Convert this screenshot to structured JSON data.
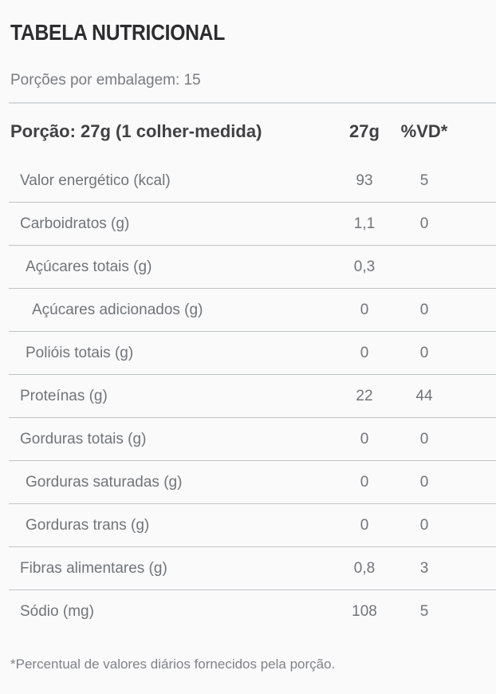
{
  "page": {
    "title": "TABELA NUTRICIONAL",
    "servings_label": "Porções por embalagem: 15",
    "footnote": "*Percentual de valores diários fornecidos pela porção."
  },
  "table": {
    "header": {
      "portion_label": "Porção: 27g (1 colher-medida)",
      "quantity_col": "27g",
      "dv_col": "%VD*"
    },
    "rows": [
      {
        "label": "Valor energético (kcal)",
        "qty": "93",
        "vd": "5",
        "indent": 0
      },
      {
        "label": "Carboidratos (g)",
        "qty": "1,1",
        "vd": "0",
        "indent": 0
      },
      {
        "label": "Açúcares totais (g)",
        "qty": "0,3",
        "vd": "",
        "indent": 1
      },
      {
        "label": "Açúcares adicionados (g)",
        "qty": "0",
        "vd": "0",
        "indent": 2
      },
      {
        "label": "Polióis totais (g)",
        "qty": "0",
        "vd": "0",
        "indent": 1
      },
      {
        "label": "Proteínas (g)",
        "qty": "22",
        "vd": "44",
        "indent": 0
      },
      {
        "label": "Gorduras totais (g)",
        "qty": "0",
        "vd": "0",
        "indent": 0
      },
      {
        "label": "Gorduras saturadas (g)",
        "qty": "0",
        "vd": "0",
        "indent": 1
      },
      {
        "label": "Gorduras trans (g)",
        "qty": "0",
        "vd": "0",
        "indent": 1
      },
      {
        "label": "Fibras alimentares (g)",
        "qty": "0,8",
        "vd": "3",
        "indent": 0
      },
      {
        "label": "Sódio (mg)",
        "qty": "108",
        "vd": "5",
        "indent": 0
      }
    ]
  },
  "colors": {
    "background": "#fafafa",
    "title_text": "#2d2d2f",
    "secondary_text": "#7a7c80",
    "header_text": "#414144",
    "row_text": "#717478",
    "separator": "#c0c4c8",
    "top_rule": "#d7dadd"
  }
}
